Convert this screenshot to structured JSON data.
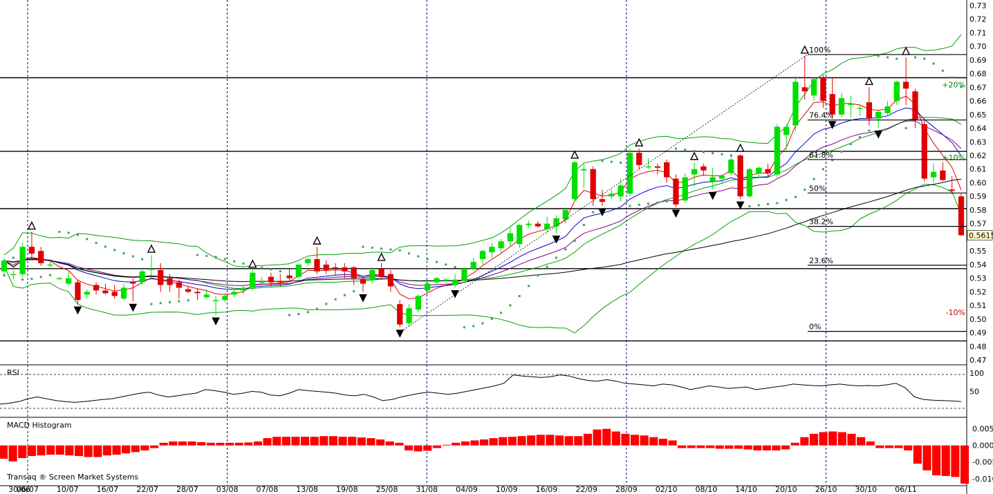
{
  "app": {
    "credit": "Transaq ® Screen Market Systems"
  },
  "colors": {
    "up": "#00e000",
    "down": "#e00000",
    "bollinger": "#00a000",
    "ma_red": "#e00000",
    "ma_blue": "#0000d0",
    "ma_purple": "#800080",
    "sar": "#40a060",
    "grid": "#000080",
    "macd": "#ff0000"
  },
  "panels": {
    "rsi_title": "RSI",
    "macd_title": "MACD Histogram"
  },
  "chart_data": [
    {
      "type": "candlestick",
      "title": "",
      "x_tick_labels": [
        "30/06",
        "06/07",
        "10/07",
        "16/07",
        "22/07",
        "28/07",
        "03/08",
        "07/08",
        "13/08",
        "19/08",
        "25/08",
        "31/08",
        "04/09",
        "10/09",
        "16/09",
        "22/09",
        "28/09",
        "02/10",
        "08/10",
        "14/10",
        "20/10",
        "26/10",
        "30/10",
        "06/11"
      ],
      "y_tick_labels": [
        "0.73",
        "0.72",
        "0.71",
        "0.70",
        "0.69",
        "0.68",
        "0.67",
        "0.66",
        "0.65",
        "0.64",
        "0.63",
        "0.62",
        "0.61",
        "0.60",
        "0.59",
        "0.58",
        "0.57",
        "0.56",
        "0.55",
        "0.54",
        "0.53",
        "0.52",
        "0.51",
        "0.50",
        "0.49",
        "0.48",
        "0.47"
      ],
      "ylim": [
        0.467,
        0.734
      ],
      "last_price": "0.5615",
      "candles": [
        {
          "o": 0.535,
          "h": 0.545,
          "l": 0.532,
          "c": 0.543
        },
        {
          "o": 0.533,
          "h": 0.536,
          "l": 0.529,
          "c": 0.533
        },
        {
          "o": 0.533,
          "h": 0.556,
          "l": 0.531,
          "c": 0.553
        },
        {
          "o": 0.553,
          "h": 0.564,
          "l": 0.544,
          "c": 0.548
        },
        {
          "o": 0.55,
          "h": 0.553,
          "l": 0.539,
          "c": 0.541
        },
        {
          "o": 0.54,
          "h": 0.542,
          "l": 0.538,
          "c": 0.54
        },
        {
          "o": 0.53,
          "h": 0.531,
          "l": 0.529,
          "c": 0.53
        },
        {
          "o": 0.526,
          "h": 0.535,
          "l": 0.525,
          "c": 0.53
        },
        {
          "o": 0.527,
          "h": 0.529,
          "l": 0.511,
          "c": 0.514
        },
        {
          "o": 0.518,
          "h": 0.522,
          "l": 0.515,
          "c": 0.52
        },
        {
          "o": 0.525,
          "h": 0.527,
          "l": 0.518,
          "c": 0.521
        },
        {
          "o": 0.521,
          "h": 0.526,
          "l": 0.518,
          "c": 0.519
        },
        {
          "o": 0.52,
          "h": 0.525,
          "l": 0.515,
          "c": 0.517
        },
        {
          "o": 0.515,
          "h": 0.526,
          "l": 0.514,
          "c": 0.523
        },
        {
          "o": 0.527,
          "h": 0.53,
          "l": 0.513,
          "c": 0.526
        },
        {
          "o": 0.527,
          "h": 0.537,
          "l": 0.525,
          "c": 0.535
        },
        {
          "o": 0.536,
          "h": 0.547,
          "l": 0.532,
          "c": 0.537
        },
        {
          "o": 0.536,
          "h": 0.541,
          "l": 0.52,
          "c": 0.525
        },
        {
          "o": 0.53,
          "h": 0.533,
          "l": 0.52,
          "c": 0.525
        },
        {
          "o": 0.527,
          "h": 0.529,
          "l": 0.515,
          "c": 0.523
        },
        {
          "o": 0.522,
          "h": 0.524,
          "l": 0.519,
          "c": 0.52
        },
        {
          "o": 0.52,
          "h": 0.522,
          "l": 0.514,
          "c": 0.519
        },
        {
          "o": 0.516,
          "h": 0.522,
          "l": 0.515,
          "c": 0.518
        },
        {
          "o": 0.514,
          "h": 0.517,
          "l": 0.503,
          "c": 0.514
        },
        {
          "o": 0.514,
          "h": 0.519,
          "l": 0.512,
          "c": 0.517
        },
        {
          "o": 0.518,
          "h": 0.521,
          "l": 0.516,
          "c": 0.52
        },
        {
          "o": 0.521,
          "h": 0.525,
          "l": 0.518,
          "c": 0.523
        },
        {
          "o": 0.523,
          "h": 0.536,
          "l": 0.521,
          "c": 0.534
        },
        {
          "o": 0.527,
          "h": 0.531,
          "l": 0.523,
          "c": 0.527
        },
        {
          "o": 0.531,
          "h": 0.534,
          "l": 0.524,
          "c": 0.527
        },
        {
          "o": 0.528,
          "h": 0.533,
          "l": 0.524,
          "c": 0.527
        },
        {
          "o": 0.532,
          "h": 0.537,
          "l": 0.527,
          "c": 0.53
        },
        {
          "o": 0.531,
          "h": 0.54,
          "l": 0.53,
          "c": 0.54
        },
        {
          "o": 0.541,
          "h": 0.545,
          "l": 0.539,
          "c": 0.544
        },
        {
          "o": 0.544,
          "h": 0.553,
          "l": 0.533,
          "c": 0.535
        },
        {
          "o": 0.54,
          "h": 0.543,
          "l": 0.533,
          "c": 0.536
        },
        {
          "o": 0.538,
          "h": 0.541,
          "l": 0.532,
          "c": 0.537
        },
        {
          "o": 0.538,
          "h": 0.541,
          "l": 0.53,
          "c": 0.535
        },
        {
          "o": 0.538,
          "h": 0.539,
          "l": 0.525,
          "c": 0.53
        },
        {
          "o": 0.529,
          "h": 0.531,
          "l": 0.52,
          "c": 0.526
        },
        {
          "o": 0.529,
          "h": 0.538,
          "l": 0.526,
          "c": 0.536
        },
        {
          "o": 0.537,
          "h": 0.541,
          "l": 0.529,
          "c": 0.531
        },
        {
          "o": 0.533,
          "h": 0.536,
          "l": 0.52,
          "c": 0.524
        },
        {
          "o": 0.511,
          "h": 0.514,
          "l": 0.494,
          "c": 0.496
        },
        {
          "o": 0.497,
          "h": 0.511,
          "l": 0.495,
          "c": 0.508
        },
        {
          "o": 0.507,
          "h": 0.518,
          "l": 0.505,
          "c": 0.517
        },
        {
          "o": 0.521,
          "h": 0.527,
          "l": 0.519,
          "c": 0.526
        },
        {
          "o": 0.527,
          "h": 0.531,
          "l": 0.525,
          "c": 0.53
        },
        {
          "o": 0.528,
          "h": 0.53,
          "l": 0.527,
          "c": 0.529
        },
        {
          "o": 0.525,
          "h": 0.533,
          "l": 0.523,
          "c": 0.529
        },
        {
          "o": 0.528,
          "h": 0.538,
          "l": 0.527,
          "c": 0.537
        },
        {
          "o": 0.537,
          "h": 0.545,
          "l": 0.536,
          "c": 0.542
        },
        {
          "o": 0.544,
          "h": 0.551,
          "l": 0.54,
          "c": 0.55
        },
        {
          "o": 0.549,
          "h": 0.556,
          "l": 0.545,
          "c": 0.553
        },
        {
          "o": 0.552,
          "h": 0.559,
          "l": 0.549,
          "c": 0.557
        },
        {
          "o": 0.557,
          "h": 0.567,
          "l": 0.553,
          "c": 0.563
        },
        {
          "o": 0.555,
          "h": 0.57,
          "l": 0.552,
          "c": 0.569
        },
        {
          "o": 0.569,
          "h": 0.572,
          "l": 0.567,
          "c": 0.57
        },
        {
          "o": 0.57,
          "h": 0.572,
          "l": 0.567,
          "c": 0.568
        },
        {
          "o": 0.566,
          "h": 0.575,
          "l": 0.564,
          "c": 0.57
        },
        {
          "o": 0.568,
          "h": 0.576,
          "l": 0.563,
          "c": 0.574
        },
        {
          "o": 0.573,
          "h": 0.582,
          "l": 0.57,
          "c": 0.58
        },
        {
          "o": 0.588,
          "h": 0.616,
          "l": 0.586,
          "c": 0.615
        },
        {
          "o": 0.609,
          "h": 0.614,
          "l": 0.596,
          "c": 0.61
        },
        {
          "o": 0.61,
          "h": 0.612,
          "l": 0.583,
          "c": 0.588
        },
        {
          "o": 0.588,
          "h": 0.595,
          "l": 0.583,
          "c": 0.586
        },
        {
          "o": 0.59,
          "h": 0.595,
          "l": 0.588,
          "c": 0.592
        },
        {
          "o": 0.59,
          "h": 0.603,
          "l": 0.586,
          "c": 0.598
        },
        {
          "o": 0.592,
          "h": 0.625,
          "l": 0.59,
          "c": 0.622
        },
        {
          "o": 0.622,
          "h": 0.625,
          "l": 0.61,
          "c": 0.613
        },
        {
          "o": 0.612,
          "h": 0.618,
          "l": 0.61,
          "c": 0.612
        },
        {
          "o": 0.612,
          "h": 0.614,
          "l": 0.606,
          "c": 0.611
        },
        {
          "o": 0.615,
          "h": 0.617,
          "l": 0.6,
          "c": 0.604
        },
        {
          "o": 0.603,
          "h": 0.606,
          "l": 0.582,
          "c": 0.584
        },
        {
          "o": 0.587,
          "h": 0.607,
          "l": 0.585,
          "c": 0.604
        },
        {
          "o": 0.606,
          "h": 0.615,
          "l": 0.597,
          "c": 0.61
        },
        {
          "o": 0.612,
          "h": 0.614,
          "l": 0.605,
          "c": 0.609
        },
        {
          "o": 0.601,
          "h": 0.611,
          "l": 0.595,
          "c": 0.604
        },
        {
          "o": 0.603,
          "h": 0.606,
          "l": 0.6,
          "c": 0.605
        },
        {
          "o": 0.607,
          "h": 0.62,
          "l": 0.606,
          "c": 0.617
        },
        {
          "o": 0.62,
          "h": 0.621,
          "l": 0.588,
          "c": 0.59
        },
        {
          "o": 0.59,
          "h": 0.611,
          "l": 0.589,
          "c": 0.61
        },
        {
          "o": 0.607,
          "h": 0.612,
          "l": 0.603,
          "c": 0.611
        },
        {
          "o": 0.61,
          "h": 0.614,
          "l": 0.604,
          "c": 0.607
        },
        {
          "o": 0.606,
          "h": 0.643,
          "l": 0.604,
          "c": 0.641
        },
        {
          "o": 0.635,
          "h": 0.643,
          "l": 0.624,
          "c": 0.641
        },
        {
          "o": 0.642,
          "h": 0.678,
          "l": 0.638,
          "c": 0.674
        },
        {
          "o": 0.67,
          "h": 0.693,
          "l": 0.661,
          "c": 0.667
        },
        {
          "o": 0.664,
          "h": 0.677,
          "l": 0.66,
          "c": 0.676
        },
        {
          "o": 0.677,
          "h": 0.679,
          "l": 0.655,
          "c": 0.66
        },
        {
          "o": 0.665,
          "h": 0.677,
          "l": 0.647,
          "c": 0.65
        },
        {
          "o": 0.65,
          "h": 0.666,
          "l": 0.648,
          "c": 0.662
        },
        {
          "o": 0.657,
          "h": 0.664,
          "l": 0.648,
          "c": 0.658
        },
        {
          "o": 0.655,
          "h": 0.657,
          "l": 0.649,
          "c": 0.655
        },
        {
          "o": 0.659,
          "h": 0.67,
          "l": 0.642,
          "c": 0.647
        },
        {
          "o": 0.647,
          "h": 0.653,
          "l": 0.64,
          "c": 0.652
        },
        {
          "o": 0.651,
          "h": 0.66,
          "l": 0.649,
          "c": 0.656
        },
        {
          "o": 0.66,
          "h": 0.675,
          "l": 0.657,
          "c": 0.674
        },
        {
          "o": 0.674,
          "h": 0.692,
          "l": 0.657,
          "c": 0.669
        },
        {
          "o": 0.667,
          "h": 0.669,
          "l": 0.64,
          "c": 0.646
        },
        {
          "o": 0.643,
          "h": 0.646,
          "l": 0.601,
          "c": 0.603
        },
        {
          "o": 0.604,
          "h": 0.614,
          "l": 0.6,
          "c": 0.608
        },
        {
          "o": 0.609,
          "h": 0.615,
          "l": 0.601,
          "c": 0.602
        },
        {
          "o": 0.595,
          "h": 0.605,
          "l": 0.592,
          "c": 0.594
        },
        {
          "o": 0.59,
          "h": 0.592,
          "l": 0.561,
          "c": 0.5615
        }
      ],
      "fibonacci": {
        "low": 0.491,
        "high": 0.694,
        "levels": [
          {
            "label": "100%",
            "value": 0.694
          },
          {
            "label": "76.4%",
            "value": 0.646
          },
          {
            "label": "61.8%",
            "value": 0.617
          },
          {
            "label": "50%",
            "value": 0.5925
          },
          {
            "label": "38.2%",
            "value": 0.568
          },
          {
            "label": "23.6%",
            "value": 0.5395
          },
          {
            "label": "0%",
            "value": 0.491
          }
        ]
      },
      "horizontal_lines": [
        0.677,
        0.623,
        0.581,
        0.537,
        0.484
      ],
      "pct_markers": [
        {
          "label": "+20%",
          "value": 0.672,
          "color": "#008000"
        },
        {
          "label": "+10%",
          "value": 0.6185,
          "color": "#008000"
        },
        {
          "label": "-10%",
          "value": 0.505,
          "color": "#c00000"
        }
      ]
    },
    {
      "type": "line",
      "title": "RSI",
      "ylim": [
        0,
        100
      ],
      "y_tick_labels": [
        "100",
        "50"
      ],
      "values": [
        15,
        18,
        22,
        30,
        35,
        30,
        25,
        22,
        20,
        22,
        25,
        28,
        30,
        35,
        40,
        45,
        48,
        40,
        35,
        38,
        42,
        45,
        55,
        52,
        48,
        42,
        45,
        50,
        48,
        40,
        38,
        45,
        55,
        52,
        50,
        48,
        45,
        40,
        38,
        42,
        35,
        25,
        28,
        35,
        40,
        45,
        48,
        45,
        42,
        45,
        50,
        55,
        60,
        65,
        72,
        95,
        92,
        90,
        88,
        90,
        95,
        92,
        85,
        80,
        78,
        82,
        78,
        72,
        70,
        68,
        65,
        70,
        68,
        62,
        55,
        60,
        65,
        62,
        58,
        60,
        62,
        55,
        58,
        62,
        65,
        70,
        68,
        66,
        65,
        68,
        70,
        67,
        65,
        66,
        65,
        68,
        72,
        60,
        35,
        28,
        26,
        25,
        24,
        22
      ]
    },
    {
      "type": "bar",
      "title": "MACD Histogram",
      "ylim": [
        -0.0115,
        0.0068
      ],
      "y_tick_labels": [
        "0.005",
        "0.000",
        "-0.005",
        "-0.010"
      ],
      "values": [
        -0.004,
        -0.0048,
        -0.0038,
        -0.0032,
        -0.003,
        -0.0028,
        -0.0028,
        -0.003,
        -0.0032,
        -0.0035,
        -0.0035,
        -0.003,
        -0.0028,
        -0.0024,
        -0.002,
        -0.0015,
        -0.0008,
        0.0008,
        0.0012,
        0.0012,
        0.0012,
        0.001,
        0.0008,
        0.0008,
        0.0008,
        0.0008,
        0.0009,
        0.0012,
        0.0022,
        0.0026,
        0.0026,
        0.0026,
        0.0026,
        0.0026,
        0.0028,
        0.0028,
        0.0026,
        0.0026,
        0.0024,
        0.0022,
        0.0018,
        0.0012,
        0.0008,
        -0.0015,
        -0.0018,
        -0.0016,
        -0.0008,
        0.0002,
        0.0008,
        0.0012,
        0.0015,
        0.0018,
        0.0022,
        0.0025,
        0.0026,
        0.0028,
        0.003,
        0.0032,
        0.0032,
        0.003,
        0.0028,
        0.0028,
        0.0035,
        0.0048,
        0.005,
        0.0042,
        0.0035,
        0.0032,
        0.003,
        0.0025,
        0.002,
        0.0015,
        -0.0008,
        -0.0008,
        -0.0008,
        -0.0008,
        -0.001,
        -0.001,
        -0.001,
        -0.0012,
        -0.0015,
        -0.0015,
        -0.0015,
        -0.0012,
        0.0008,
        0.0025,
        0.0035,
        0.004,
        0.0042,
        0.004,
        0.0035,
        0.0025,
        0.0012,
        -0.0008,
        -0.0008,
        -0.0008,
        -0.0015,
        -0.0055,
        -0.0075,
        -0.009,
        -0.0092,
        -0.0095,
        -0.0115
      ]
    }
  ]
}
